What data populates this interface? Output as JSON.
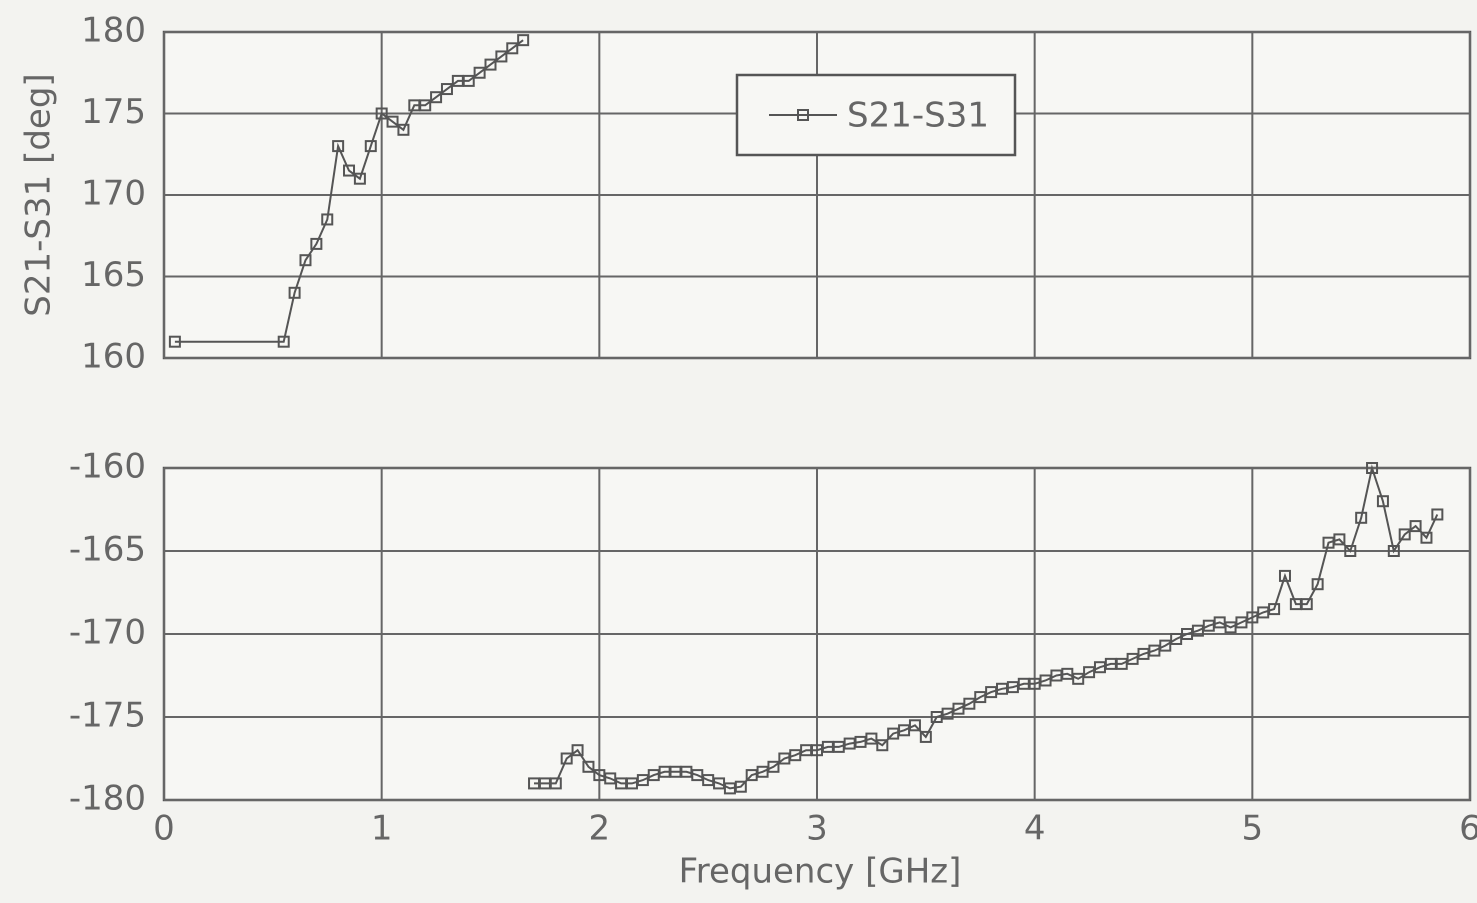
{
  "chart_data": [
    {
      "type": "line",
      "ylabel": "S21-S31 [deg]",
      "legend": "upper center",
      "grid": true,
      "xtick_labels": false,
      "xlim": [
        0,
        6
      ],
      "xticks": [
        0,
        1,
        2,
        3,
        4,
        5,
        6
      ],
      "ylim": [
        160,
        180
      ],
      "yticks": [
        160,
        165,
        170,
        175,
        180
      ],
      "x": [
        0.05,
        0.55,
        0.6,
        0.65,
        0.7,
        0.75,
        0.8,
        0.85,
        0.9,
        0.95,
        1.0,
        1.05,
        1.1,
        1.15,
        1.2,
        1.25,
        1.3,
        1.35,
        1.4,
        1.45,
        1.5,
        1.55,
        1.6,
        1.65
      ],
      "series": [
        {
          "name": "S21-S31",
          "color": "#555555",
          "values": [
            161,
            161,
            164,
            166,
            167,
            168.5,
            173,
            171.5,
            171,
            173,
            175,
            174.5,
            174,
            175.5,
            175.5,
            176,
            176.5,
            177,
            177,
            177.5,
            178,
            178.5,
            179,
            179.5
          ]
        }
      ]
    },
    {
      "type": "line",
      "xlabel": "Frequency [GHz]",
      "grid": true,
      "xtick_labels": true,
      "xlim": [
        0,
        6
      ],
      "xticks": [
        0,
        1,
        2,
        3,
        4,
        5,
        6
      ],
      "ylim": [
        -180,
        -160
      ],
      "yticks": [
        -180,
        -175,
        -170,
        -165,
        -160
      ],
      "x": [
        1.7,
        1.75,
        1.8,
        1.85,
        1.9,
        1.95,
        2.0,
        2.05,
        2.1,
        2.15,
        2.2,
        2.25,
        2.3,
        2.35,
        2.4,
        2.45,
        2.5,
        2.55,
        2.6,
        2.65,
        2.7,
        2.75,
        2.8,
        2.85,
        2.9,
        2.95,
        3.0,
        3.05,
        3.1,
        3.15,
        3.2,
        3.25,
        3.3,
        3.35,
        3.4,
        3.45,
        3.5,
        3.55,
        3.6,
        3.65,
        3.7,
        3.75,
        3.8,
        3.85,
        3.9,
        3.95,
        4.0,
        4.05,
        4.1,
        4.15,
        4.2,
        4.25,
        4.3,
        4.35,
        4.4,
        4.45,
        4.5,
        4.55,
        4.6,
        4.65,
        4.7,
        4.75,
        4.8,
        4.85,
        4.9,
        4.95,
        5.0,
        5.05,
        5.1,
        5.15,
        5.2,
        5.25,
        5.3,
        5.35,
        5.4,
        5.45,
        5.5,
        5.55,
        5.6,
        5.65,
        5.7,
        5.75,
        5.8,
        5.85
      ],
      "series": [
        {
          "color": "#555555",
          "values": [
            -179,
            -179,
            -179,
            -177.5,
            -177,
            -178,
            -178.5,
            -178.7,
            -179,
            -179,
            -178.8,
            -178.5,
            -178.3,
            -178.3,
            -178.3,
            -178.5,
            -178.8,
            -179,
            -179.3,
            -179.2,
            -178.5,
            -178.3,
            -178,
            -177.5,
            -177.3,
            -177,
            -177,
            -176.8,
            -176.8,
            -176.6,
            -176.5,
            -176.3,
            -176.7,
            -176,
            -175.8,
            -175.5,
            -176.2,
            -175,
            -174.8,
            -174.5,
            -174.2,
            -173.8,
            -173.5,
            -173.3,
            -173.2,
            -173,
            -173,
            -172.8,
            -172.5,
            -172.4,
            -172.7,
            -172.3,
            -172,
            -171.8,
            -171.8,
            -171.5,
            -171.2,
            -171,
            -170.7,
            -170.3,
            -170,
            -169.8,
            -169.5,
            -169.3,
            -169.6,
            -169.3,
            -169,
            -168.7,
            -168.5,
            -166.5,
            -168.2,
            -168.2,
            -167,
            -164.5,
            -164.3,
            -165,
            -163,
            -160,
            -162,
            -165,
            -164,
            -163.5,
            -164.2,
            -162.8
          ]
        }
      ]
    }
  ]
}
